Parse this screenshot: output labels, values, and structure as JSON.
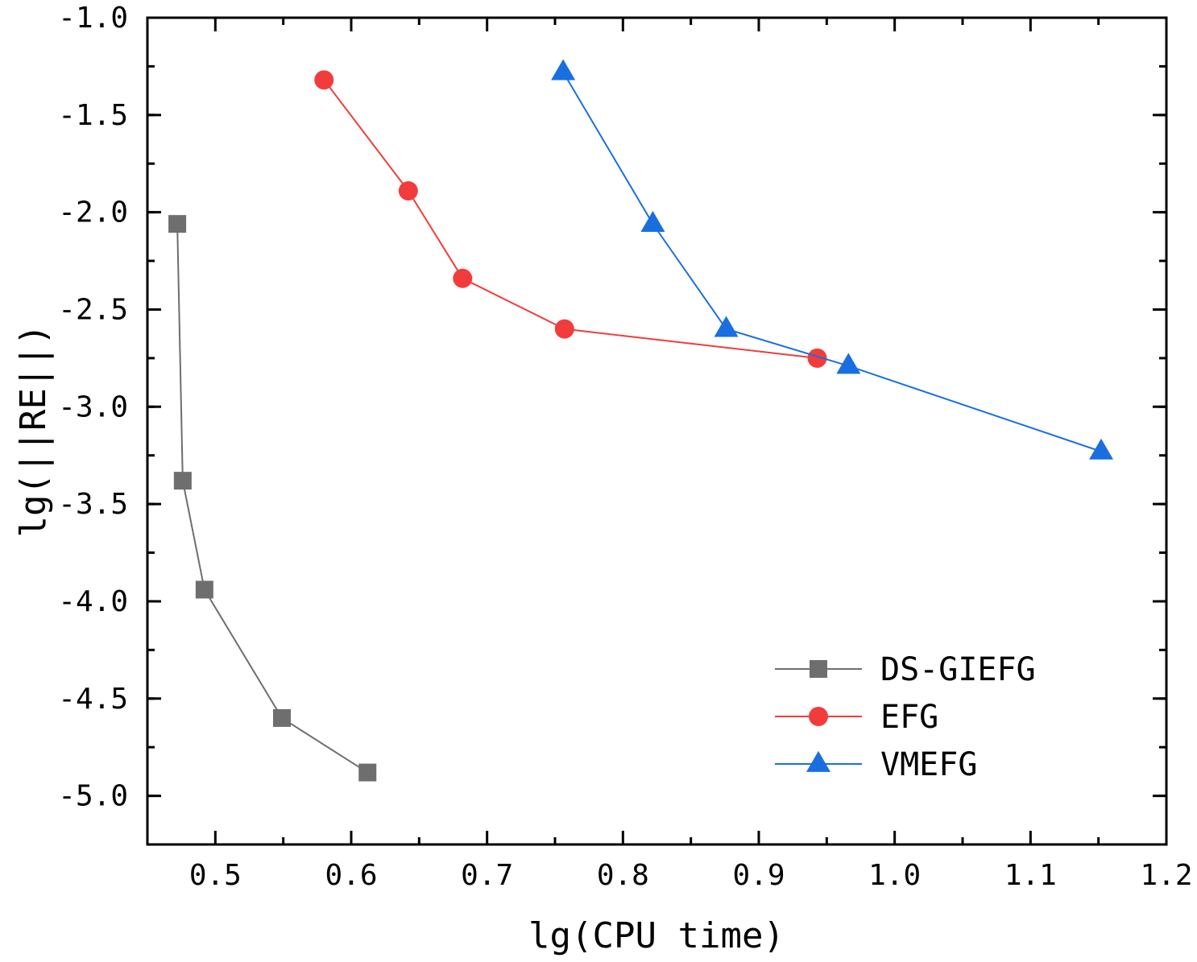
{
  "chart_data": {
    "type": "line",
    "title": "",
    "xlabel": "lg(CPU time)",
    "ylabel": "lg(||RE||)",
    "xlim": [
      0.45,
      1.2
    ],
    "ylim": [
      -5.25,
      -1.0
    ],
    "xticks": [
      0.5,
      0.6,
      0.7,
      0.8,
      0.9,
      1.0,
      1.1,
      1.2
    ],
    "xtick_labels": [
      "0.5",
      "0.6",
      "0.7",
      "0.8",
      "0.9",
      "1.0",
      "1.1",
      "1.2"
    ],
    "yticks": [
      -1.0,
      -1.5,
      -2.0,
      -2.5,
      -3.0,
      -3.5,
      -4.0,
      -4.5,
      -5.0
    ],
    "ytick_labels": [
      "-1.0",
      "-1.5",
      "-2.0",
      "-2.5",
      "-3.0",
      "-3.5",
      "-4.0",
      "-4.5",
      "-5.0"
    ],
    "grid": false,
    "legend_position": "bottom-right",
    "series": [
      {
        "name": "DS-GIEFG",
        "color": "#6e6e6e",
        "marker": "square",
        "x": [
          0.472,
          0.476,
          0.492,
          0.549,
          0.612
        ],
        "y": [
          -2.06,
          -3.38,
          -3.94,
          -4.6,
          -4.88
        ]
      },
      {
        "name": "EFG",
        "color": "#f23c3c",
        "marker": "circle",
        "x": [
          0.58,
          0.642,
          0.682,
          0.757,
          0.943
        ],
        "y": [
          -1.32,
          -1.89,
          -2.34,
          -2.6,
          -2.75
        ]
      },
      {
        "name": "VMEFG",
        "color": "#1a6fe0",
        "marker": "triangle",
        "x": [
          0.756,
          0.822,
          0.876,
          0.966,
          1.152
        ],
        "y": [
          -1.28,
          -2.06,
          -2.6,
          -2.79,
          -3.23
        ]
      }
    ]
  }
}
